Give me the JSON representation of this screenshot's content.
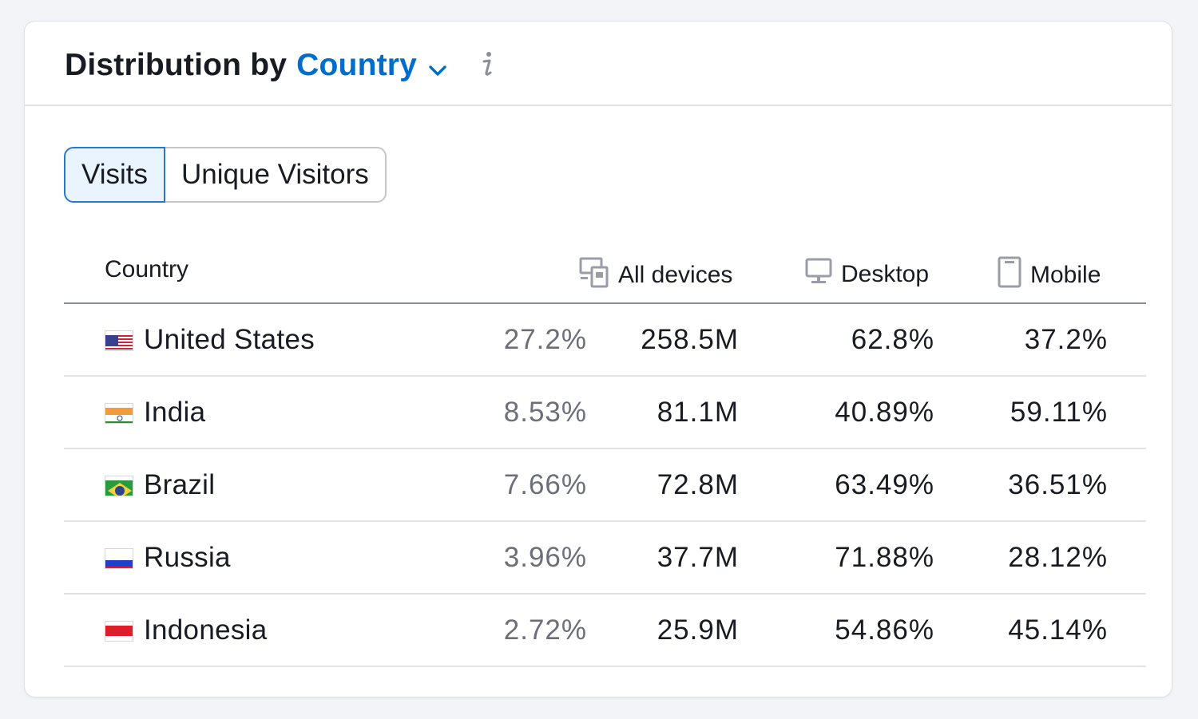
{
  "widget": {
    "title_prefix": "Distribution by",
    "title_dropdown": "Country",
    "dropdown_icon": "chevron-down-icon",
    "info_icon": "info-icon",
    "colors": {
      "accent": "#006dca",
      "active_tab_bg": "#e9f4ff",
      "active_tab_border": "#2a79c9",
      "muted_text": "#6c6e79"
    }
  },
  "toggle": {
    "options": [
      "Visits",
      "Unique Visitors"
    ],
    "selected": "Visits"
  },
  "table": {
    "headers": {
      "country": "Country",
      "all_devices": "All devices",
      "desktop": "Desktop",
      "mobile": "Mobile"
    },
    "header_icons": {
      "all_devices": "devices-icon",
      "desktop": "desktop-icon",
      "mobile": "mobile-icon"
    },
    "rows": [
      {
        "flag": "us-flag-icon",
        "country": "United States",
        "share": "27.2%",
        "all_devices": "258.5M",
        "desktop": "62.8%",
        "mobile": "37.2%"
      },
      {
        "flag": "india-flag-icon",
        "country": "India",
        "share": "8.53%",
        "all_devices": "81.1M",
        "desktop": "40.89%",
        "mobile": "59.11%"
      },
      {
        "flag": "brazil-flag-icon",
        "country": "Brazil",
        "share": "7.66%",
        "all_devices": "72.8M",
        "desktop": "63.49%",
        "mobile": "36.51%"
      },
      {
        "flag": "russia-flag-icon",
        "country": "Russia",
        "share": "3.96%",
        "all_devices": "37.7M",
        "desktop": "71.88%",
        "mobile": "28.12%"
      },
      {
        "flag": "indonesia-flag-icon",
        "country": "Indonesia",
        "share": "2.72%",
        "all_devices": "25.9M",
        "desktop": "54.86%",
        "mobile": "45.14%"
      }
    ]
  }
}
